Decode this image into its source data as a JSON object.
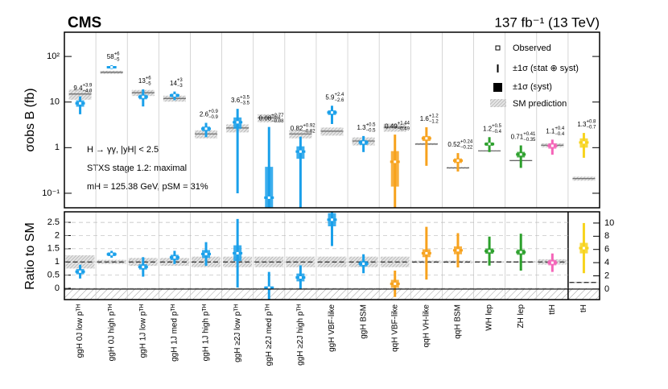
{
  "chart_data": {
    "type": "errorbar",
    "title": "CMS",
    "subtitle": "137 fb⁻¹ (13 TeV)",
    "ylabel": "σobs B (fb)",
    "ratio_ylabel": "Ratio to SM",
    "annotations": [
      "H → γγ, |yH| < 2.5",
      "STXS stage 1.2: maximal",
      "mH = 125.38 GeV, pSM = 31%"
    ],
    "legend": [
      "Observed",
      "±1σ (stat ⊕ syst)",
      "±1σ (syst)",
      "SM prediction"
    ],
    "log": true,
    "grid": true,
    "categories": [
      "ggH 0J low pᵀᴴ",
      "ggH 0J high pᵀᴴ",
      "ggH 1J low pᵀᴴ",
      "ggH 1J med pᵀᴴ",
      "ggH 1J high pᵀᴴ",
      "ggH ≥2J low pᵀᴴ",
      "ggH ≥2J med pᵀᴴ",
      "ggH ≥2J high pᵀᴴ",
      "ggH VBF-like",
      "ggH BSM",
      "qqH VBF-like",
      "qqH VH-like",
      "qqH BSM",
      "WH lep",
      "ZH lep",
      "ttH",
      "tH"
    ],
    "colors": [
      "#1aa0ea",
      "#1aa0ea",
      "#1aa0ea",
      "#1aa0ea",
      "#1aa0ea",
      "#1aa0ea",
      "#1aa0ea",
      "#1aa0ea",
      "#1aa0ea",
      "#1aa0ea",
      "#f7a21d",
      "#f7a21d",
      "#f7a21d",
      "#2ca02c",
      "#2ca02c",
      "#f564b8",
      "#f7d31d"
    ],
    "observed": [
      9.4,
      58,
      13,
      14,
      2.6,
      3.6,
      0.08,
      0.82,
      5.9,
      1.3,
      0.49,
      1.6,
      0.52,
      1.2,
      0.71,
      1.1,
      1.3
    ],
    "err_up": [
      3.9,
      6,
      6,
      3,
      0.9,
      3.5,
      2.77,
      0.92,
      2.4,
      0.5,
      1.44,
      1.2,
      0.24,
      0.5,
      0.41,
      0.4,
      0.8
    ],
    "err_up_labels": [
      "+3.9",
      "+6",
      "+6",
      "+3",
      "+0.9",
      "+3.5",
      "+2.77",
      "+0.92",
      "+2.4",
      "+0.5",
      "+1.44",
      "+1.2",
      "+0.24",
      "+0.5",
      "+0.41",
      "+0.4",
      "+0.8"
    ],
    "err_down": [
      4.0,
      5,
      5,
      3,
      0.9,
      3.5,
      0.08,
      0.82,
      2.6,
      0.5,
      0.49,
      1.2,
      0.22,
      0.4,
      0.35,
      0.4,
      0.7
    ],
    "err_down_labels": [
      "−4.0",
      "−5",
      "−5",
      "−3",
      "−0.9",
      "−3.5",
      "−0.08",
      "−0.82",
      "−2.6",
      "−0.5",
      "−0.49",
      "−1.2",
      "−0.22",
      "−0.4",
      "−0.35",
      "−0.4",
      "−0.7"
    ],
    "syst": [
      1.5,
      3,
      1.5,
      1.2,
      0.3,
      1.0,
      0.3,
      0.25,
      0.7,
      0.15,
      0.35,
      0.2,
      0.06,
      0.1,
      0.1,
      0.15,
      0.3
    ],
    "sm": [
      15,
      45,
      16,
      12,
      2.0,
      2.7,
      4.5,
      2.0,
      2.3,
      1.4,
      2.8,
      1.2,
      0.36,
      0.85,
      0.52,
      1.13,
      0.21
    ],
    "sm_unc": [
      0.25,
      0.08,
      0.15,
      0.15,
      0.2,
      0.2,
      0.2,
      0.2,
      0.2,
      0.2,
      0.2,
      0.05,
      0.05,
      0.03,
      0.03,
      0.1,
      0.1
    ],
    "ratio": [
      0.63,
      1.29,
      0.81,
      1.17,
      1.3,
      1.33,
      0.02,
      0.41,
      2.6,
      0.93,
      0.17,
      1.33,
      1.44,
      1.41,
      1.37,
      0.97,
      6.2
    ],
    "ratio_err": [
      0.26,
      0.13,
      0.37,
      0.25,
      0.45,
      1.3,
      0.6,
      0.46,
      1.0,
      0.36,
      0.5,
      1.0,
      0.65,
      0.55,
      0.7,
      0.35,
      3.8
    ],
    "ratio_syst": [
      0.1,
      0.07,
      0.1,
      0.1,
      0.15,
      0.3,
      0.05,
      0.15,
      0.25,
      0.1,
      0.15,
      0.15,
      0.15,
      0.1,
      0.1,
      0.1,
      0.8
    ],
    "ratio_axis": [
      "y",
      "y",
      "y",
      "y",
      "y",
      "y",
      "y",
      "y",
      "y",
      "y",
      "y",
      "y",
      "y",
      "y",
      "y",
      "y",
      "y2"
    ],
    "ylim": [
      0.048,
      340
    ],
    "yticks": [
      {
        "value": 0.1,
        "label": "10⁻¹"
      },
      1,
      10,
      {
        "value": 100,
        "label": "10²"
      }
    ],
    "ratio_ylim": [
      -0.43,
      2.9
    ],
    "ratio_yticks": [
      0,
      0.5,
      1,
      1.5,
      2,
      2.5
    ],
    "y2lim": [
      -1.6,
      11.7
    ],
    "y2ticks": [
      0,
      2,
      4,
      6,
      8,
      10
    ]
  }
}
